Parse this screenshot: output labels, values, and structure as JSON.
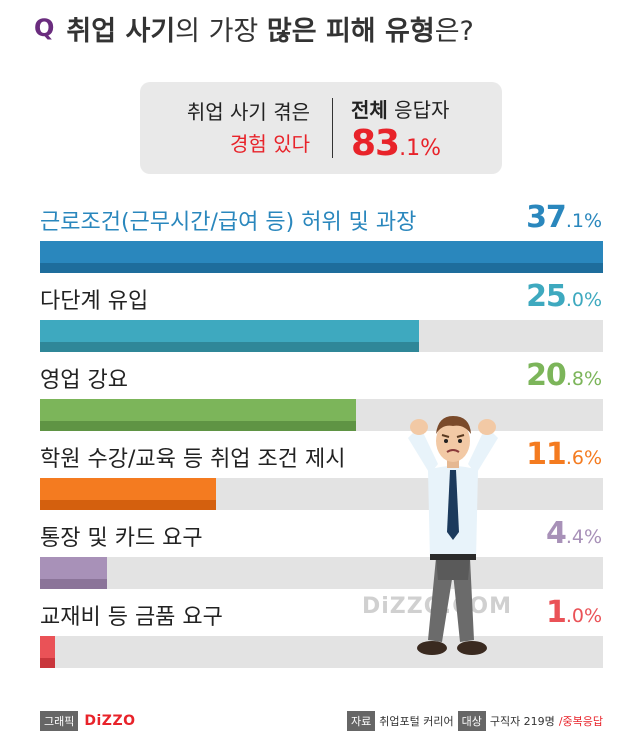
{
  "header": {
    "q": "Q",
    "title_a": "취업 사기",
    "title_b": "의 가장",
    "title_c": "많은 피해 유형",
    "title_d": "은?"
  },
  "summary": {
    "line1": "취업 사기 겪은",
    "line2": "경험 있다",
    "right_bold": "전체",
    "right_rest": " 응답자",
    "value_int": "83",
    "value_dec": ".1%"
  },
  "chart_data": {
    "type": "bar",
    "orientation": "horizontal",
    "unit": "%",
    "xlim": [
      0,
      100
    ],
    "categories": [
      "근로조건(근무시간/급여 등) 허위 및 과장",
      "다단계 유입",
      "영업 강요",
      "학원 수강/교육 등 취업 조건 제시",
      "통장 및 카드 요구",
      "교재비 등 금품 요구"
    ],
    "values": [
      37.1,
      25.0,
      20.8,
      11.6,
      4.4,
      1.0
    ],
    "value_labels_int": [
      "37",
      "25",
      "20",
      "11",
      "4",
      "1"
    ],
    "value_labels_dec": [
      ".1%",
      ".0%",
      ".8%",
      ".6%",
      ".4%",
      ".0%"
    ],
    "colors": [
      "#2a87bd",
      "#3ea9bf",
      "#7cb55a",
      "#f47b20",
      "#a891b8",
      "#ea5257"
    ],
    "colors_dark": [
      "#1e6d9c",
      "#2f8798",
      "#5f9444",
      "#d4600e",
      "#8b7499",
      "#c9363c"
    ]
  },
  "watermark": "DiZZO.COM",
  "footer": {
    "credit_tag": "그래픽",
    "brand": "DiZZO",
    "source_tag": "자료",
    "source": "취업포털 커리어",
    "target_tag": "대상",
    "target": "구직자 219명",
    "multi": "/중복응답"
  }
}
